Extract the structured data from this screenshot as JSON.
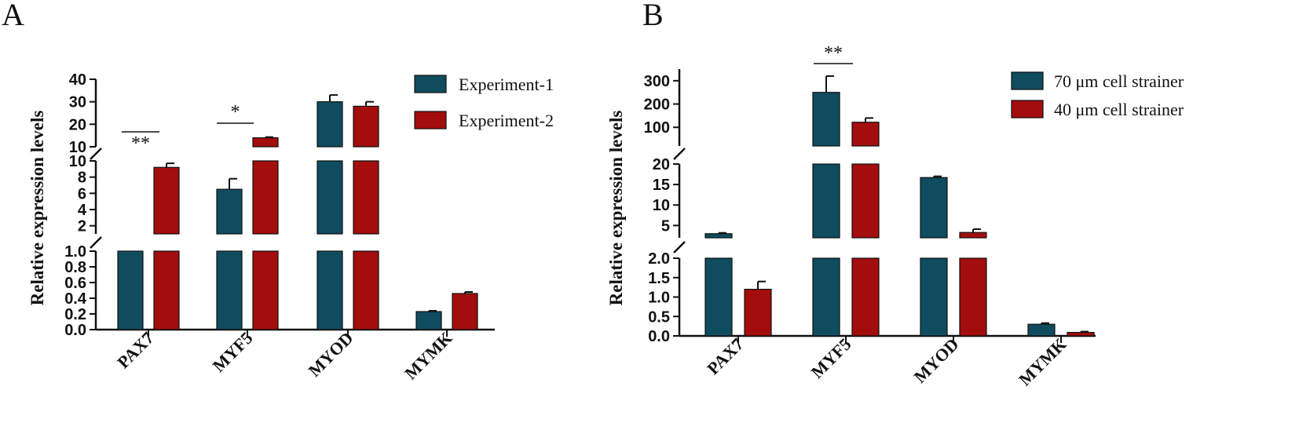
{
  "figure": {
    "panel_a_letter": "A",
    "panel_b_letter": "B"
  },
  "chart_data": [
    {
      "type": "bar",
      "panel": "A",
      "ylabel": "Relative expression levels",
      "xlabel": "",
      "categories": [
        "PAX7",
        "MYF5",
        "MYOD",
        "MYMK"
      ],
      "series": [
        {
          "name": "Experiment-1",
          "color": "#0f4c5f",
          "values": [
            1.0,
            6.5,
            30.0,
            0.23
          ],
          "errors": [
            0,
            1.3,
            3.0,
            0.01
          ]
        },
        {
          "name": "Experiment-2",
          "color": "#a30d0d",
          "values": [
            9.2,
            14.0,
            28.0,
            0.46
          ],
          "errors": [
            0.5,
            0.3,
            2.0,
            0.02
          ]
        }
      ],
      "y_axis_segments": [
        {
          "range": [
            0,
            1.0
          ],
          "ticks": [
            "0.0",
            "0.2",
            "0.4",
            "0.6",
            "0.8",
            "1.0"
          ]
        },
        {
          "range": [
            1,
            10
          ],
          "ticks": [
            "2",
            "4",
            "6",
            "8",
            "10"
          ]
        },
        {
          "range": [
            10,
            40
          ],
          "ticks": [
            "10",
            "20",
            "30",
            "40"
          ]
        }
      ],
      "significance": [
        {
          "category": "PAX7",
          "label": "**"
        },
        {
          "category": "MYF5",
          "label": "*"
        }
      ],
      "legend_position": "top-right"
    },
    {
      "type": "bar",
      "panel": "B",
      "ylabel": "Relative expression levels",
      "xlabel": "",
      "categories": [
        "PAX7",
        "MYF5",
        "MYOD",
        "MYMK"
      ],
      "series": [
        {
          "name": "70 μm cell strainer",
          "color": "#0f4c5f",
          "values": [
            3.0,
            250,
            16.7,
            0.3
          ],
          "errors": [
            0.2,
            70,
            0.3,
            0.03
          ]
        },
        {
          "name": "40 μm cell strainer",
          "color": "#a30d0d",
          "values": [
            1.2,
            122,
            3.3,
            0.09
          ],
          "errors": [
            0.2,
            18,
            0.8,
            0.02
          ]
        }
      ],
      "y_axis_segments": [
        {
          "range": [
            0,
            2.0
          ],
          "ticks": [
            "0.0",
            "0.5",
            "1.0",
            "1.5",
            "2.0"
          ]
        },
        {
          "range": [
            2,
            20
          ],
          "ticks": [
            "5",
            "10",
            "15",
            "20"
          ]
        },
        {
          "range": [
            20,
            350
          ],
          "ticks": [
            "100",
            "200",
            "300"
          ]
        }
      ],
      "significance": [
        {
          "category": "MYF5",
          "label": "**"
        }
      ],
      "legend_position": "top-right"
    }
  ]
}
